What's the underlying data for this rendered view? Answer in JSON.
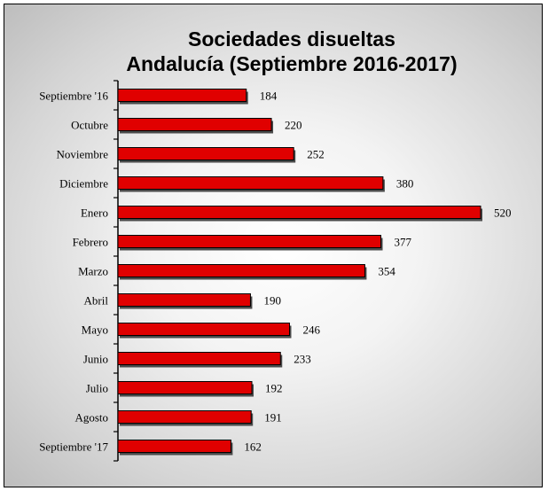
{
  "colors": {
    "bar_fill": "#e00000",
    "bar_border": "#000000",
    "bar_shadow": "#4a4a4a",
    "axis": "#000000"
  },
  "chart_data": {
    "type": "bar",
    "orientation": "horizontal",
    "title": [
      "Sociedades disueltas",
      "Andalucía (Septiembre 2016-2017)"
    ],
    "categories": [
      "Septiembre '16",
      "Octubre",
      "Noviembre",
      "Diciembre",
      "Enero",
      "Febrero",
      "Marzo",
      "Abril",
      "Mayo",
      "Junio",
      "Julio",
      "Agosto",
      "Septiembre '17"
    ],
    "values": [
      184,
      220,
      252,
      380,
      520,
      377,
      354,
      190,
      246,
      233,
      192,
      191,
      162
    ],
    "xlim": [
      0,
      520
    ],
    "grid": false,
    "data_labels": true
  }
}
